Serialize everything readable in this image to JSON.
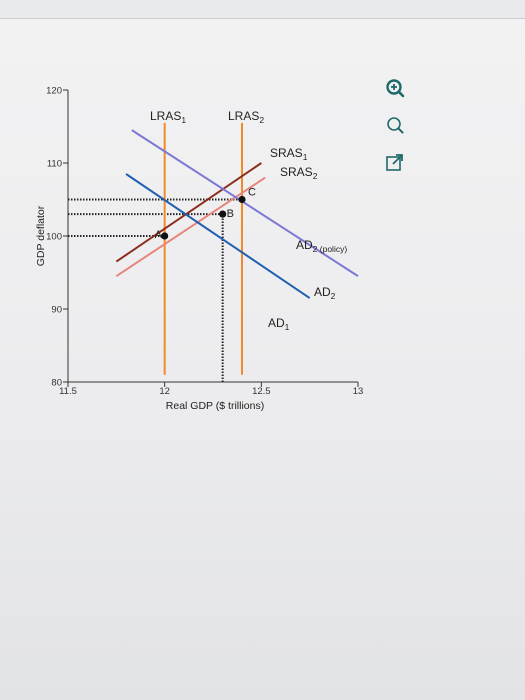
{
  "chart_data": {
    "type": "line",
    "title": "",
    "xlabel": "Real GDP ($ trillions)",
    "ylabel": "GDP deflator",
    "xlim": [
      11.5,
      13
    ],
    "ylim": [
      80,
      120
    ],
    "x_ticks": [
      {
        "value": 11.5,
        "label": "11.5"
      },
      {
        "value": 12,
        "label": "12"
      },
      {
        "value": 12.5,
        "label": "12.5"
      },
      {
        "value": 13,
        "label": "13"
      }
    ],
    "y_ticks": [
      {
        "value": 80,
        "label": "80"
      },
      {
        "value": 90,
        "label": "90"
      },
      {
        "value": 100,
        "label": "100"
      },
      {
        "value": 110,
        "label": "110"
      },
      {
        "value": 120,
        "label": "120"
      }
    ],
    "grid": false,
    "series": [
      {
        "name": "LRAS1",
        "label": "LRAS",
        "sub": "1",
        "color": "#f08a2a",
        "x": [
          12.0,
          12.0
        ],
        "y": [
          81,
          115.5
        ]
      },
      {
        "name": "LRAS2",
        "label": "LRAS",
        "sub": "2",
        "color": "#f08a2a",
        "x": [
          12.4,
          12.4
        ],
        "y": [
          81,
          115.5
        ]
      },
      {
        "name": "SRAS1",
        "label": "SRAS",
        "sub": "1",
        "color": "#8b2e1e",
        "x": [
          11.75,
          12.5
        ],
        "y": [
          96.5,
          110
        ]
      },
      {
        "name": "SRAS2",
        "label": "SRAS",
        "sub": "2",
        "color": "#e8857a",
        "x": [
          11.75,
          12.52
        ],
        "y": [
          94.5,
          108
        ]
      },
      {
        "name": "AD1",
        "label": "AD",
        "sub": "1",
        "color": "#1f5fb0",
        "x": [
          11.8,
          12.75
        ],
        "y": [
          108.5,
          91.5
        ]
      },
      {
        "name": "AD2 (policy)",
        "label": "AD",
        "sub": "2",
        "suffix": " (policy)",
        "color": "#7b78d6",
        "x": [
          11.83,
          13.0
        ],
        "y": [
          114.5,
          94.5
        ]
      }
    ],
    "points": [
      {
        "name": "A",
        "x": 12.0,
        "y": 100
      },
      {
        "name": "B",
        "x": 12.3,
        "y": 103
      },
      {
        "name": "C",
        "x": 12.4,
        "y": 105
      }
    ],
    "reference_lines": [
      {
        "y": 105,
        "x_from": 11.5,
        "x_to": 12.4
      },
      {
        "y": 103,
        "x_from": 11.5,
        "x_to": 12.3
      },
      {
        "y": 100,
        "x_from": 11.5,
        "x_to": 12.0
      },
      {
        "x": 12.3,
        "y_from": 80,
        "y_to": 103
      }
    ]
  },
  "tools": [
    {
      "name": "zoom-in-icon"
    },
    {
      "name": "zoom-out-icon"
    },
    {
      "name": "popout-icon"
    }
  ]
}
